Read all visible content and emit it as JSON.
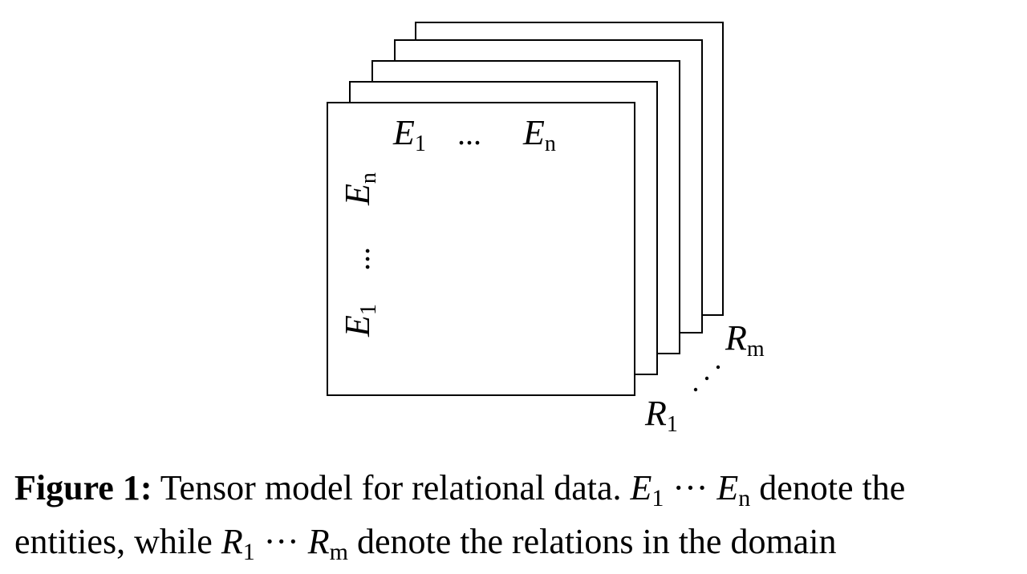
{
  "figure": {
    "slices": 5,
    "row_label_start": "E",
    "row_label_start_sub": "1",
    "row_label_dots": "...",
    "row_label_end": "E",
    "row_label_end_sub": "n",
    "col_label_start": "E",
    "col_label_start_sub": "1",
    "col_label_dots": "...",
    "col_label_end": "E",
    "col_label_end_sub": "n",
    "depth_label_start": "R",
    "depth_label_start_sub": "1",
    "depth_label_end": "R",
    "depth_label_end_sub": "m"
  },
  "caption": {
    "label": "Figure 1:",
    "line1_text": " Tensor model for relational data. ",
    "e_start": "E",
    "e_start_sub": "1",
    "dots1": " ··· ",
    "e_end": "E",
    "e_end_sub": "n",
    "line1_tail": " denote the",
    "line2_head": "entities, while ",
    "r_start": "R",
    "r_start_sub": "1",
    "dots2": " ··· ",
    "r_end": "R",
    "r_end_sub": "m",
    "line2_tail": " denote the relations in the domain"
  }
}
